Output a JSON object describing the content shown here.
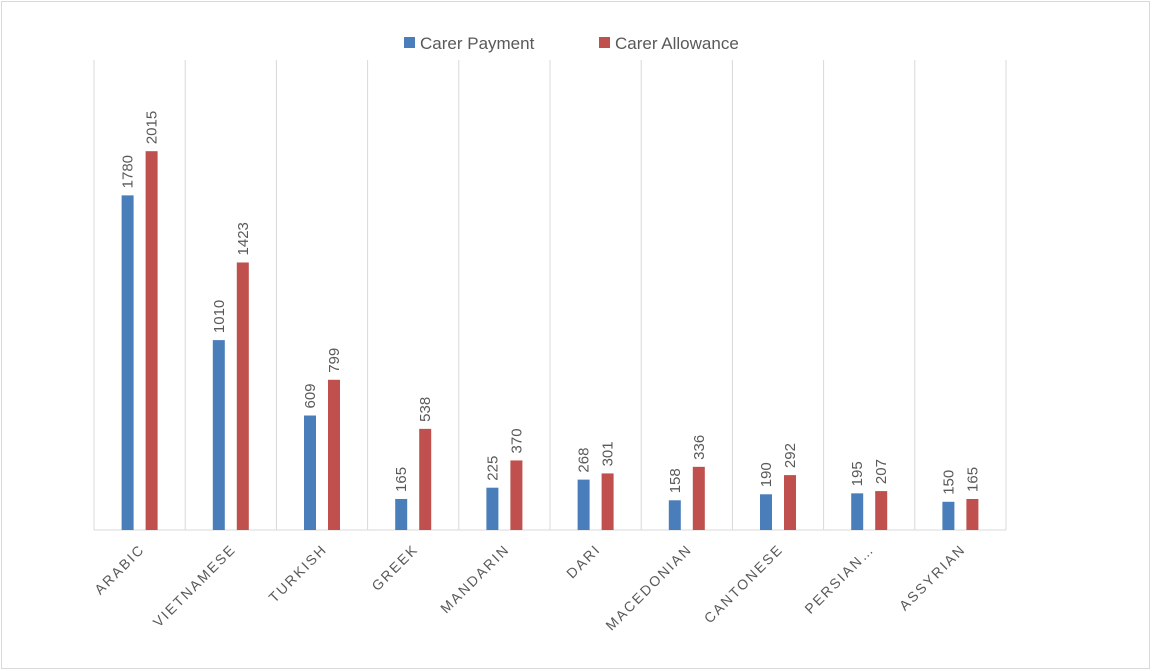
{
  "chart_data": {
    "type": "bar",
    "categories": [
      "ARABIC",
      "VIETNAMESE",
      "TURKISH",
      "GREEK",
      "MANDARIN",
      "DARI",
      "MACEDONIAN",
      "CANTONESE",
      "PERSIAN…",
      "ASSYRIAN"
    ],
    "series": [
      {
        "name": "Carer Payment",
        "color": "#4a7ebb",
        "values": [
          1780,
          1010,
          609,
          165,
          225,
          268,
          158,
          190,
          195,
          150
        ]
      },
      {
        "name": "Carer Allowance",
        "color": "#c0504d",
        "values": [
          2015,
          1423,
          799,
          538,
          370,
          301,
          336,
          292,
          207,
          165
        ]
      }
    ],
    "ylim": [
      0,
      2500
    ],
    "legend": "top"
  }
}
